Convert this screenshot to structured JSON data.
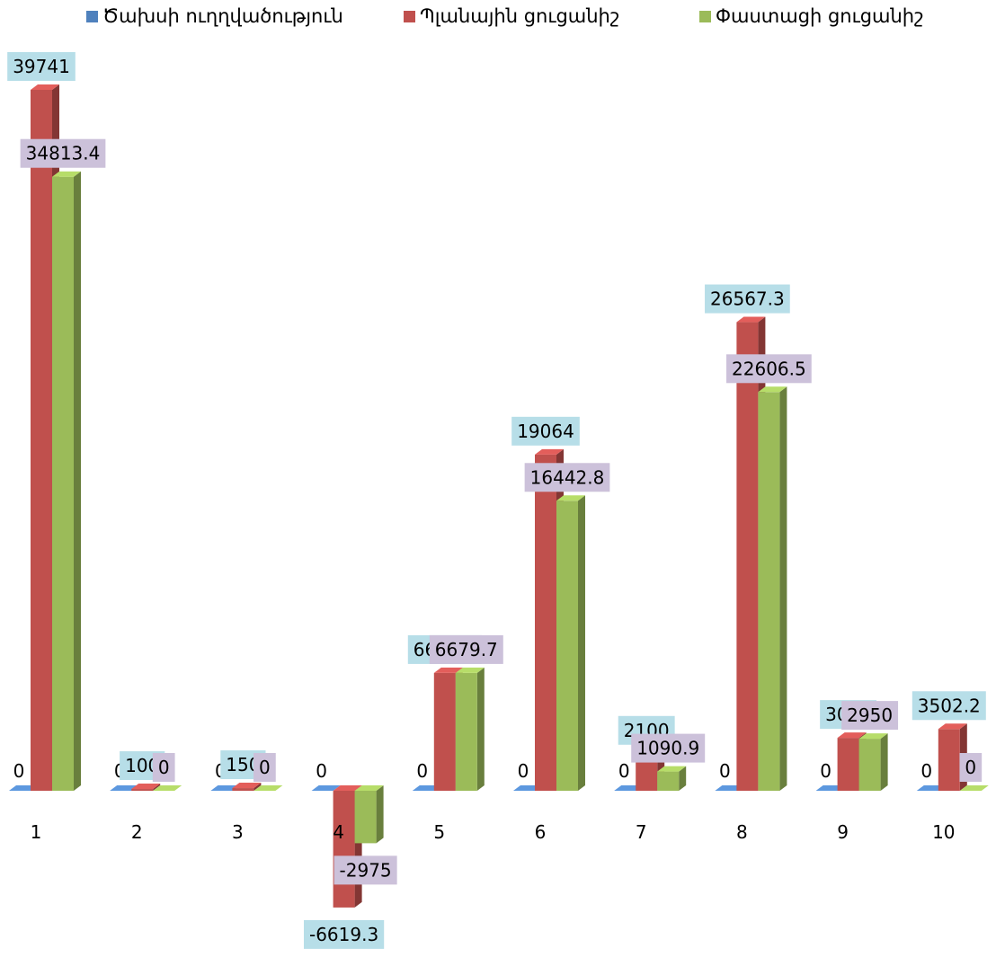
{
  "chart_data": {
    "type": "bar",
    "style": "3d-clustered-column",
    "title": "",
    "xlabel": "",
    "ylabel": "",
    "grid": false,
    "legend": "top",
    "ylim": [
      -6619.3,
      39741
    ],
    "categories": [
      "1",
      "2",
      "3",
      "4",
      "5",
      "6",
      "7",
      "8",
      "9",
      "10"
    ],
    "series": [
      {
        "name": "Ծախսի ուղղվածություն",
        "color": "#4f81bd",
        "values": [
          0,
          0,
          0,
          0,
          0,
          0,
          0,
          0,
          0,
          0
        ],
        "labels": [
          "0",
          "0",
          "0",
          "0",
          "0",
          "0",
          "0",
          "0",
          "0",
          "0"
        ]
      },
      {
        "name": "Պլանային ցուցանիշ",
        "color": "#c0504d",
        "label_bg": "#b7dee8",
        "values": [
          39741,
          100,
          150,
          -6619.3,
          6679.7,
          19064,
          2100,
          26567.3,
          3000,
          3502.2
        ],
        "labels": [
          "39741",
          "100",
          "150",
          "-6619.3",
          "6679.7",
          "19064",
          "2100",
          "26567.3",
          "3000",
          "3502.2"
        ]
      },
      {
        "name": "Փաստացի ցուցանիշ",
        "color": "#9bbb59",
        "label_bg": "#ccc1da",
        "values": [
          34813.4,
          0,
          0,
          -2975,
          6679.7,
          16442.8,
          1090.9,
          22606.5,
          2950,
          0
        ],
        "labels": [
          "34813.4",
          "0",
          "0",
          "-2975",
          "6679.7",
          "16442.8",
          "1090.9",
          "22606.5",
          "2950",
          "0"
        ]
      }
    ]
  }
}
